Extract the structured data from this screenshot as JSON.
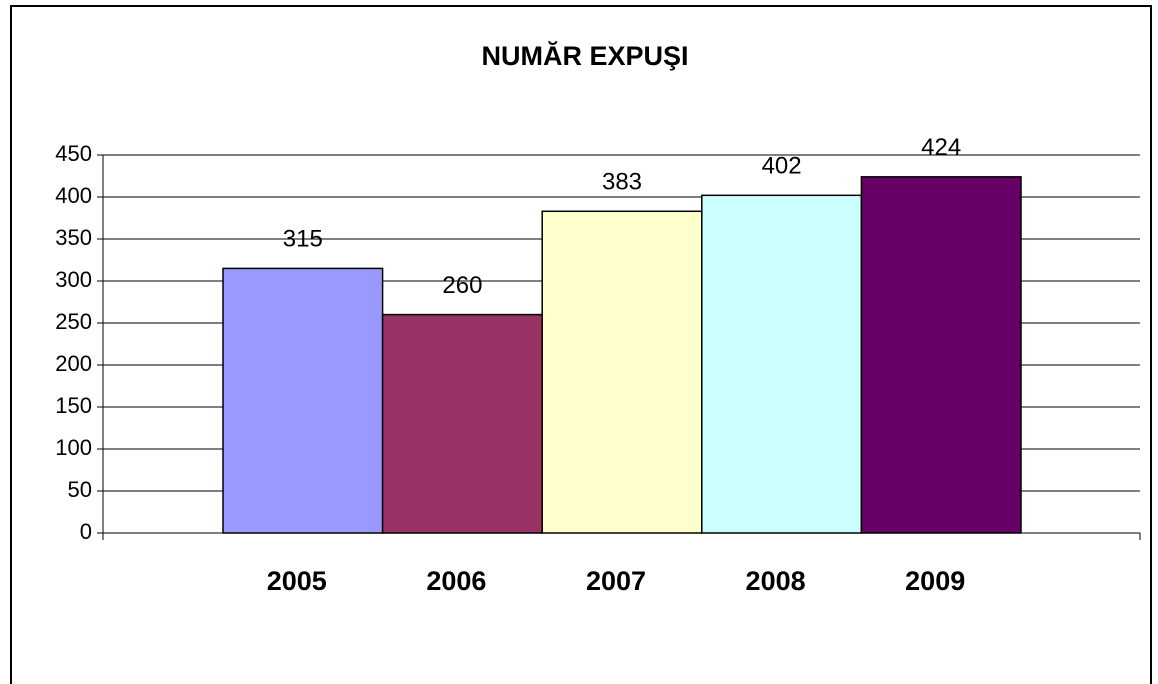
{
  "chart_data": {
    "type": "bar",
    "title": "NUMĂR EXPUŞI",
    "categories": [
      "2005",
      "2006",
      "2007",
      "2008",
      "2009"
    ],
    "values": [
      315,
      260,
      383,
      402,
      424
    ],
    "colors": [
      "#9999ff",
      "#993366",
      "#ffffcc",
      "#ccffff",
      "#660066"
    ],
    "ylim": [
      0,
      450
    ],
    "yticks": [
      0,
      50,
      100,
      150,
      200,
      250,
      300,
      350,
      400,
      450
    ],
    "grid": true
  }
}
